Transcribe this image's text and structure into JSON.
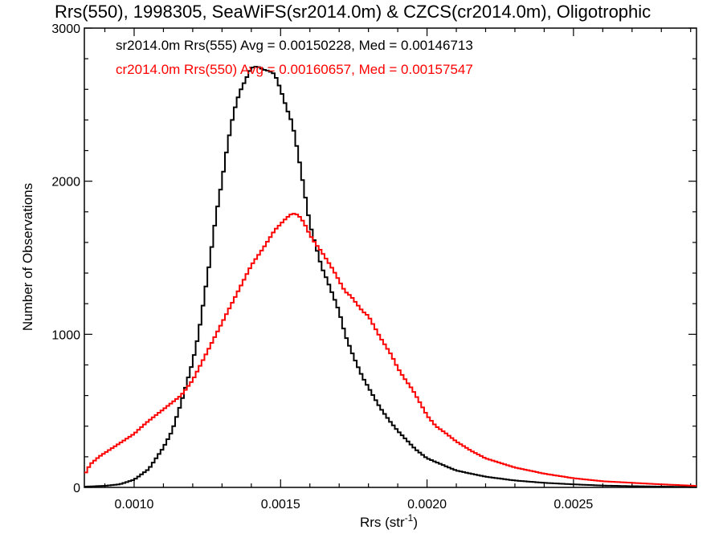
{
  "chart_data": {
    "type": "line",
    "title": "Rrs(550), 1998305, SeaWiFS(sr2014.0m) & CZCS(cr2014.0m), Oligotrophic",
    "xlabel": "Rrs (str",
    "xlabel_superscript": "-1",
    "xlabel_suffix": ")",
    "ylabel": "Number of Observations",
    "xlim": [
      0.00083,
      0.00292
    ],
    "ylim": [
      0,
      3000
    ],
    "xticks": [
      0.001,
      0.0015,
      0.002,
      0.0025
    ],
    "xtick_labels": [
      "0.0010",
      "0.0015",
      "0.0020",
      "0.0025"
    ],
    "yticks": [
      0,
      1000,
      2000,
      3000
    ],
    "ytick_labels": [
      "0",
      "1000",
      "2000",
      "3000"
    ],
    "grid": false,
    "legend": "top-left",
    "series": [
      {
        "name": "sr2014.0m Rrs(555)",
        "color": "#000000",
        "annotation": "sr2014.0m Rrs(555) Avg = 0.00150228, Med = 0.00146713",
        "x": [
          0.00083,
          0.0009,
          0.00095,
          0.001,
          0.00105,
          0.0011,
          0.00113,
          0.00116,
          0.0012,
          0.00122,
          0.00124,
          0.00126,
          0.00128,
          0.0013,
          0.00132,
          0.00134,
          0.00136,
          0.00138,
          0.0014,
          0.00142,
          0.00144,
          0.00146,
          0.00148,
          0.0015,
          0.00152,
          0.00154,
          0.00156,
          0.00158,
          0.0016,
          0.00162,
          0.00164,
          0.00166,
          0.00168,
          0.0017,
          0.00172,
          0.00175,
          0.00178,
          0.00181,
          0.00184,
          0.00187,
          0.0019,
          0.00193,
          0.00196,
          0.002,
          0.00205,
          0.0021,
          0.00215,
          0.0022,
          0.0023,
          0.0024,
          0.0025,
          0.0026,
          0.0027,
          0.0028,
          0.00292
        ],
        "y": [
          5,
          10,
          20,
          50,
          120,
          260,
          370,
          550,
          820,
          1000,
          1250,
          1500,
          1780,
          2000,
          2250,
          2450,
          2580,
          2660,
          2740,
          2750,
          2730,
          2720,
          2700,
          2600,
          2480,
          2380,
          2180,
          1950,
          1720,
          1580,
          1440,
          1350,
          1250,
          1150,
          1000,
          850,
          720,
          620,
          520,
          440,
          370,
          310,
          250,
          190,
          150,
          110,
          90,
          70,
          45,
          30,
          20,
          12,
          8,
          5,
          3
        ]
      },
      {
        "name": "cr2014.0m Rrs(550)",
        "color": "#ff0000",
        "annotation": "cr2014.0m Rrs(550) Avg = 0.00160657, Med = 0.00157547",
        "x": [
          0.00083,
          0.00085,
          0.00088,
          0.00092,
          0.00096,
          0.001,
          0.00104,
          0.00108,
          0.00112,
          0.00116,
          0.0012,
          0.00124,
          0.00128,
          0.00132,
          0.00136,
          0.0014,
          0.00144,
          0.00148,
          0.00152,
          0.00154,
          0.00156,
          0.00158,
          0.0016,
          0.00162,
          0.00164,
          0.00166,
          0.00168,
          0.0017,
          0.00172,
          0.00174,
          0.00176,
          0.00178,
          0.0018,
          0.00182,
          0.00184,
          0.00186,
          0.00188,
          0.0019,
          0.00192,
          0.00195,
          0.00198,
          0.002,
          0.00203,
          0.00206,
          0.0021,
          0.00215,
          0.0022,
          0.00225,
          0.0023,
          0.00235,
          0.0024,
          0.0025,
          0.0026,
          0.0027,
          0.0028,
          0.00292
        ],
        "y": [
          80,
          150,
          200,
          250,
          300,
          350,
          420,
          480,
          540,
          600,
          700,
          850,
          1000,
          1150,
          1300,
          1450,
          1560,
          1680,
          1760,
          1790,
          1780,
          1730,
          1650,
          1590,
          1540,
          1480,
          1420,
          1350,
          1280,
          1250,
          1200,
          1150,
          1120,
          1050,
          980,
          920,
          860,
          780,
          720,
          640,
          540,
          470,
          400,
          360,
          300,
          240,
          190,
          160,
          130,
          110,
          90,
          60,
          40,
          30,
          20,
          10
        ]
      }
    ]
  }
}
